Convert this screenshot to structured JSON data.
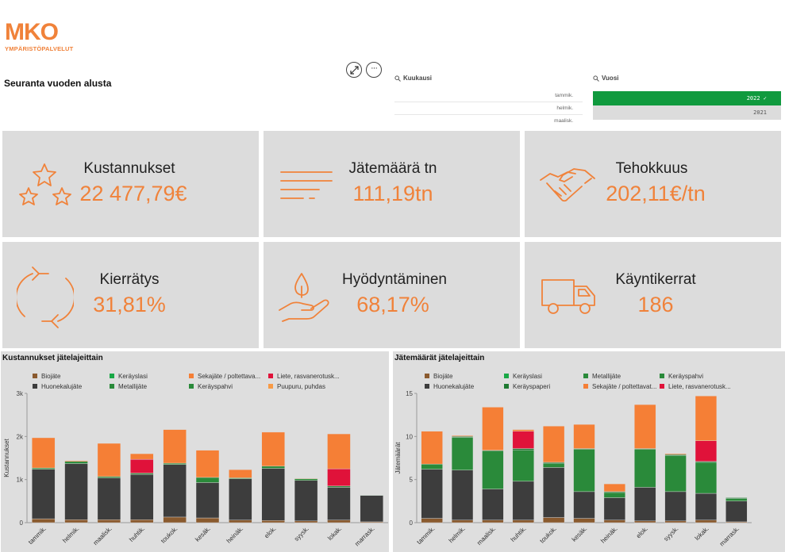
{
  "brand": {
    "logo_text": "MKO",
    "logo_sub": "YMPÄRISTÖPALVELUT",
    "accent": "#f0823a"
  },
  "sheet": {
    "title": "Seuranta vuoden alusta"
  },
  "toolbar": {
    "expand_icon": "expand-icon",
    "more_icon": "more-icon"
  },
  "filters": {
    "month": {
      "label": "Kuukausi",
      "items": [
        "tammik.",
        "helmik.",
        "maalisk."
      ]
    },
    "year": {
      "label": "Vuosi",
      "items": [
        {
          "label": "2022",
          "selected": true
        },
        {
          "label": "2021",
          "selected": false
        }
      ]
    }
  },
  "kpis": [
    {
      "label": "Kustannukset",
      "value": "22 477,79€",
      "icon": "stars-icon"
    },
    {
      "label": "Jätemäärä tn",
      "value": "111,19tn",
      "icon": "lines-icon"
    },
    {
      "label": "Tehokkuus",
      "value": "202,11€/tn",
      "icon": "handshake-icon"
    },
    {
      "label": "Kierrätys",
      "value": "31,81%",
      "icon": "recycle-icon"
    },
    {
      "label": "Hyödyntäminen",
      "value": "68,17%",
      "icon": "hand-plant-icon"
    },
    {
      "label": "Käyntikerrat",
      "value": "186",
      "icon": "truck-icon"
    }
  ],
  "colors": {
    "Biojäte": "#8a5a2e",
    "Huonekalujäte": "#3d3d3d",
    "Keräyslasi": "#19a846",
    "Metallijäte": "#2a8a3a",
    "Sekajäte / poltettava": "#f57f36",
    "Puupuru, puhdas": "#f89a45",
    "Liete, rasvanerotus": "#e0123a",
    "Keräyspahvi": "#2a8a3a",
    "Keräyspaperi": "#1e7a32"
  },
  "chart_data": [
    {
      "type": "bar",
      "stacked": true,
      "title": "Kustannukset jätelajeittain",
      "ylabel": "Kustannukset",
      "ylim": [
        0,
        3000
      ],
      "yticks": [
        "0",
        "1k",
        "2k",
        "3k"
      ],
      "categories": [
        "tammik.",
        "helmik.",
        "maalisk.",
        "huhtik.",
        "toukok.",
        "kesäk.",
        "heinäk.",
        "elok.",
        "syysk.",
        "lokak.",
        "marrask."
      ],
      "legend": [
        [
          "Biojäte",
          "Keräyslasi",
          "Sekajäte / poltettava...",
          "Liete, rasvanerotusk..."
        ],
        [
          "Huonekalujäte",
          "Metallijäte",
          "Keräyspahvi",
          "Puupuru, puhdas"
        ]
      ],
      "series": [
        {
          "name": "Biojäte",
          "color": "#8a5a2e",
          "values": [
            90,
            70,
            70,
            70,
            130,
            110,
            60,
            50,
            40,
            60,
            20
          ]
        },
        {
          "name": "Huonekalujäte",
          "color": "#3d3d3d",
          "values": [
            1150,
            1300,
            970,
            1050,
            1220,
            820,
            960,
            1210,
            940,
            760,
            610
          ]
        },
        {
          "name": "Keräyslasi",
          "color": "#19a846",
          "values": [
            0,
            0,
            0,
            0,
            0,
            0,
            0,
            0,
            0,
            0,
            0
          ]
        },
        {
          "name": "Metallijäte",
          "color": "#2a8a3a",
          "values": [
            30,
            50,
            30,
            30,
            30,
            120,
            20,
            50,
            40,
            30,
            10
          ]
        },
        {
          "name": "Keräyspahvi",
          "color": "#2a8a3a",
          "values": [
            0,
            0,
            0,
            0,
            0,
            0,
            0,
            0,
            0,
            0,
            0
          ]
        },
        {
          "name": "Liete, rasvanerotus",
          "color": "#e0123a",
          "values": [
            0,
            0,
            0,
            320,
            0,
            0,
            0,
            0,
            0,
            400,
            0
          ]
        },
        {
          "name": "Sekajäte / poltettava",
          "color": "#f57f36",
          "values": [
            700,
            20,
            770,
            130,
            780,
            630,
            190,
            790,
            10,
            810,
            0
          ]
        }
      ]
    },
    {
      "type": "bar",
      "stacked": true,
      "title": "Jätemäärät jätelajeittain",
      "ylabel": "Jätemäärät",
      "ylim": [
        0,
        15
      ],
      "yticks": [
        "0",
        "5",
        "10",
        "15"
      ],
      "categories": [
        "tammik.",
        "helmik.",
        "maalisk.",
        "huhtik.",
        "toukok.",
        "kesäk.",
        "heinäk.",
        "elok.",
        "syysk.",
        "lokak.",
        "marrask."
      ],
      "legend": [
        [
          "Biojäte",
          "Keräyslasi",
          "Metallijäte",
          "Keräyspahvi"
        ],
        [
          "Huonekalujäte",
          "Keräyspaperi",
          "Sekajäte / poltettavat...",
          "Liete, rasvanerotusk..."
        ]
      ],
      "series": [
        {
          "name": "Biojäte",
          "color": "#8a5a2e",
          "values": [
            0.5,
            0.3,
            0.3,
            0.3,
            0.6,
            0.5,
            0.3,
            0.2,
            0.2,
            0.3,
            0.1
          ]
        },
        {
          "name": "Huonekalujäte",
          "color": "#3d3d3d",
          "values": [
            5.7,
            5.8,
            3.6,
            4.5,
            5.8,
            3.1,
            2.6,
            3.9,
            3.4,
            3.1,
            2.4
          ]
        },
        {
          "name": "Keräyslasi",
          "color": "#19a846",
          "values": [
            0,
            0,
            0,
            0,
            0,
            0,
            0,
            0,
            0,
            0,
            0
          ]
        },
        {
          "name": "Metallijäte",
          "color": "#2a8a3a",
          "values": [
            0.6,
            3.8,
            4.4,
            3.6,
            0.5,
            4.9,
            0.6,
            4.4,
            4.2,
            3.6,
            0.3
          ]
        },
        {
          "name": "Keräyspahvi",
          "color": "#2a8a3a",
          "values": [
            0,
            0,
            0,
            0,
            0,
            0,
            0,
            0,
            0,
            0,
            0
          ]
        },
        {
          "name": "Keräyspaperi",
          "color": "#1e7a32",
          "values": [
            0,
            0.1,
            0.1,
            0.2,
            0.1,
            0.1,
            0.1,
            0.1,
            0.1,
            0.1,
            0.1
          ]
        },
        {
          "name": "Liete, rasvanerotus",
          "color": "#e0123a",
          "values": [
            0,
            0,
            0,
            2.0,
            0,
            0,
            0,
            0,
            0,
            2.4,
            0
          ]
        },
        {
          "name": "Sekajäte / poltettava",
          "color": "#f57f36",
          "values": [
            3.8,
            0.1,
            5.0,
            0.2,
            4.2,
            2.8,
            0.9,
            5.1,
            0.1,
            5.2,
            0
          ]
        }
      ]
    }
  ]
}
